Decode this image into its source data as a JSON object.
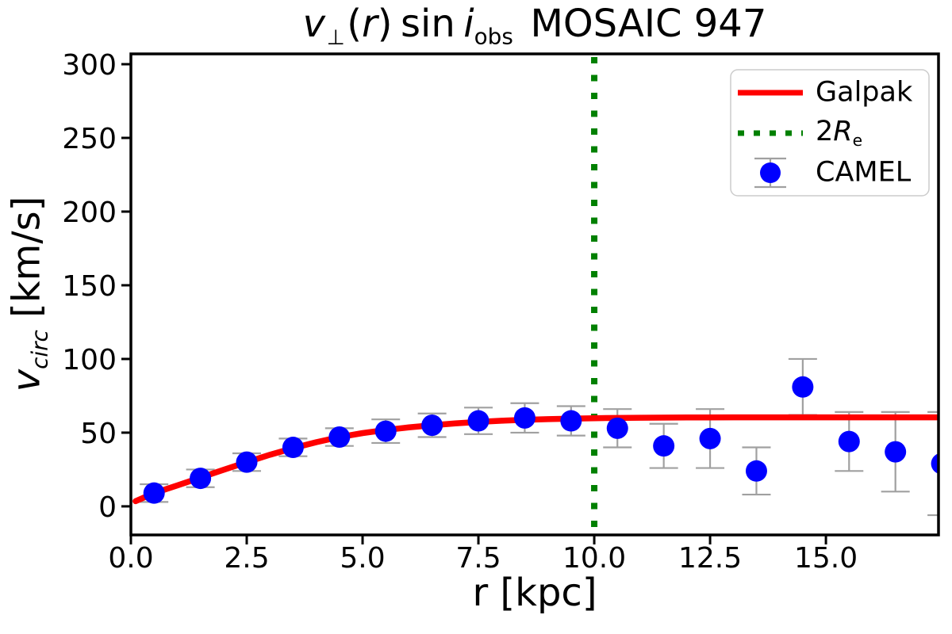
{
  "figure": {
    "background": "#ffffff"
  },
  "title": {
    "v": "v",
    "perp": "⊥",
    "open_paren": "(",
    "r": "r",
    "close_paren": ")",
    "sin": "sin",
    "i": "i",
    "obs": "obs",
    "suffix": "MOSAIC 947"
  },
  "axes": {
    "x_label": "r [kpc]",
    "y_label": {
      "v": "v",
      "sub": "circ",
      "unit": " [km/s]"
    },
    "x_tick_labels": [
      "0.0",
      "2.5",
      "5.0",
      "7.5",
      "10.0",
      "12.5",
      "15.0"
    ],
    "x_tick_values": [
      0,
      2.5,
      5,
      7.5,
      10,
      12.5,
      15
    ],
    "y_tick_labels": [
      "0",
      "50",
      "100",
      "150",
      "200",
      "250",
      "300"
    ],
    "y_tick_values": [
      0,
      50,
      100,
      150,
      200,
      250,
      300
    ],
    "xlim": [
      0,
      17.43
    ],
    "ylim": [
      -19.4,
      307
    ]
  },
  "legend": {
    "items": [
      {
        "label": "Galpak",
        "type": "line",
        "color": "#ff0000"
      },
      {
        "label": "2Re",
        "parts": {
          "prefix": "2",
          "symbol": "R",
          "sub": "e"
        },
        "type": "dotted-line",
        "color": "#008000"
      },
      {
        "label": "CAMEL",
        "type": "marker-errorbar",
        "color": "#0000ff"
      }
    ]
  },
  "chart_data": {
    "type": "line",
    "title": "v_perp(r) sin i_obs MOSAIC 947",
    "xlabel": "r [kpc]",
    "ylabel": "v_circ [km/s]",
    "xlim": [
      0,
      17.43
    ],
    "ylim": [
      -19.4,
      307
    ],
    "grid": false,
    "legend_position": "upper right",
    "series": [
      {
        "name": "Galpak",
        "type": "line",
        "color": "#ff0000",
        "linewidth": 7.5,
        "x": [
          0.1,
          0.5,
          1.0,
          1.5,
          2.0,
          2.5,
          3.0,
          3.5,
          4.0,
          4.5,
          5.0,
          5.5,
          6.0,
          6.5,
          7.0,
          7.5,
          8.0,
          8.5,
          9.0,
          9.5,
          10.0,
          10.5,
          11.0,
          12.0,
          13.0,
          14.0,
          15.0,
          16.0,
          17.43
        ],
        "y": [
          3.5,
          9,
          14.2,
          19.5,
          24.8,
          30,
          35,
          39.5,
          43.5,
          47,
          49.7,
          51.8,
          53.6,
          55,
          56.3,
          57.3,
          58.1,
          58.7,
          59.2,
          59.5,
          59.8,
          60,
          60.1,
          60.3,
          60.4,
          60.4,
          60.4,
          60.4,
          60.4
        ]
      },
      {
        "name": "2Re",
        "type": "vline",
        "color": "#008000",
        "x": 10,
        "linestyle": "dotted",
        "linewidth": 8
      },
      {
        "name": "CAMEL",
        "type": "scatter",
        "color": "#0000ff",
        "markersize": 13.5,
        "errorbar_color": "#a0a0a0",
        "x": [
          0.5,
          1.5,
          2.5,
          3.5,
          4.5,
          5.5,
          6.5,
          7.5,
          8.5,
          9.5,
          10.5,
          11.5,
          12.5,
          13.5,
          14.5,
          15.5,
          16.5,
          17.5
        ],
        "y": [
          9,
          19,
          30,
          40,
          47,
          51,
          55,
          58,
          60,
          58,
          53,
          41,
          46,
          24,
          81,
          44,
          37,
          29
        ],
        "yerr": [
          6,
          6,
          6,
          6,
          6,
          8,
          8,
          9,
          10,
          10,
          13,
          15,
          20,
          16,
          19,
          20,
          27,
          35
        ]
      }
    ]
  }
}
